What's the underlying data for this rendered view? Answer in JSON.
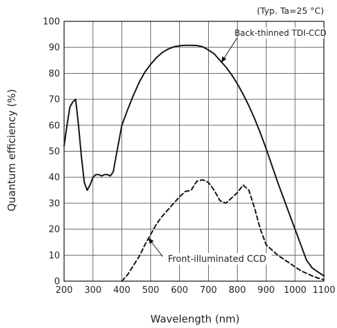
{
  "chart_data": {
    "type": "line",
    "title": "",
    "note": "(Typ. Ta=25 °C)",
    "xlabel": "Wavelength (nm)",
    "ylabel": "Quantum efficiency (%)",
    "xlim": [
      200,
      1100
    ],
    "ylim": [
      0,
      100
    ],
    "xticks": [
      200,
      300,
      400,
      500,
      600,
      700,
      800,
      900,
      1000,
      1100
    ],
    "yticks": [
      0,
      10,
      20,
      30,
      40,
      50,
      60,
      70,
      80,
      90,
      100
    ],
    "grid": true,
    "series": [
      {
        "name": "Back-thinned TDI-CCD",
        "style": "solid",
        "color": "#111111",
        "x": [
          200,
          210,
          220,
          230,
          240,
          250,
          260,
          270,
          280,
          290,
          300,
          310,
          320,
          330,
          340,
          350,
          360,
          370,
          380,
          390,
          400,
          420,
          440,
          460,
          480,
          500,
          520,
          540,
          560,
          580,
          600,
          620,
          640,
          660,
          680,
          700,
          720,
          740,
          760,
          780,
          800,
          820,
          840,
          860,
          880,
          900,
          920,
          940,
          960,
          980,
          1000,
          1020,
          1040,
          1060,
          1080,
          1100
        ],
        "y": [
          52,
          60,
          67,
          69,
          70,
          60,
          48,
          38,
          35,
          37,
          40,
          41,
          41,
          40.5,
          41,
          41,
          40.5,
          42,
          48,
          54,
          60,
          66,
          71.5,
          76.5,
          80.5,
          83.5,
          86,
          88,
          89.3,
          90.2,
          90.6,
          90.8,
          90.8,
          90.7,
          90.2,
          89,
          87.5,
          85,
          82.5,
          79.5,
          76,
          72,
          67.5,
          62.5,
          57,
          51,
          44.5,
          38,
          32,
          26,
          20,
          14,
          8,
          5,
          3.5,
          2
        ]
      },
      {
        "name": "Front-illuminated CCD",
        "style": "dashed",
        "color": "#111111",
        "x": [
          400,
          420,
          440,
          460,
          480,
          500,
          520,
          540,
          560,
          580,
          600,
          620,
          640,
          660,
          680,
          700,
          720,
          740,
          760,
          780,
          800,
          820,
          840,
          860,
          880,
          900,
          920,
          940,
          960,
          980,
          1000,
          1020,
          1040,
          1060,
          1080,
          1100
        ],
        "y": [
          0,
          2.5,
          6,
          9.5,
          14,
          18,
          22,
          25,
          27.5,
          30,
          32.5,
          34.5,
          35,
          38.5,
          39,
          38,
          35,
          31,
          30,
          32,
          34,
          37,
          35,
          28,
          20,
          14,
          12,
          10,
          8.5,
          7,
          5.5,
          4,
          3,
          2,
          1.2,
          0.5
        ]
      }
    ],
    "annotations": [
      {
        "text": "Back-thinned TDI-CCD",
        "series": 0
      },
      {
        "text": "Front-illuminated CCD",
        "series": 1
      }
    ]
  },
  "colors": {
    "axis": "#222222",
    "grid": "#555555",
    "line": "#111111",
    "background": "#ffffff"
  }
}
